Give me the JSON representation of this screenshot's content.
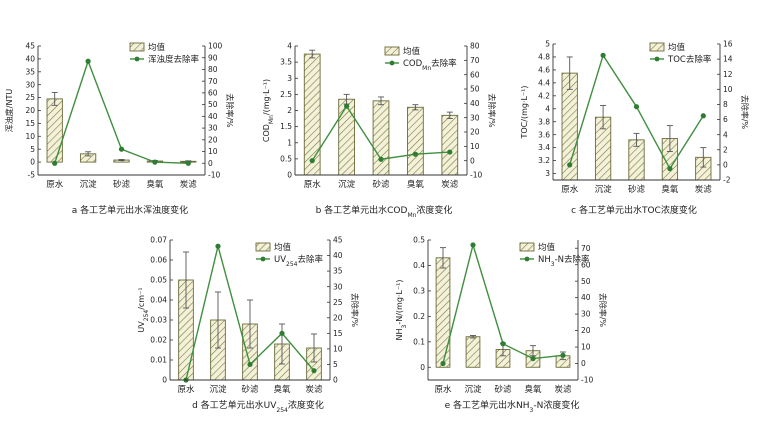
{
  "chart_data": [
    {
      "type": "bar+line",
      "panel": "a",
      "caption": "a 各工艺单元出水浑浊度变化",
      "categories": [
        "原水",
        "沉淀",
        "砂滤",
        "臭氧",
        "炭滤"
      ],
      "bar_series": {
        "name": "均值",
        "values": [
          24.5,
          3.2,
          0.8,
          0.4,
          0.3
        ],
        "errors": [
          2.5,
          0.8,
          0.2,
          0.2,
          0.2
        ]
      },
      "line_series": {
        "name": "浑浊度去除率",
        "values": [
          0,
          87,
          12,
          1,
          0
        ]
      },
      "ylabel_left": "浑浊度/NTU",
      "ylabel_right": "去除率/%",
      "ylim_left": [
        -5,
        45
      ],
      "yticks_left": [
        -5,
        0,
        5,
        10,
        15,
        20,
        25,
        30,
        35,
        40,
        45
      ],
      "ylim_right": [
        -10,
        100
      ],
      "yticks_right": [
        -10,
        0,
        10,
        20,
        30,
        40,
        50,
        60,
        70,
        80,
        90,
        100
      ],
      "legend_placement": "top-right",
      "grid": false
    },
    {
      "type": "bar+line",
      "panel": "b",
      "caption": "b 各工艺单元出水COD浓度变化",
      "caption_sub": "Mn",
      "categories": [
        "原水",
        "沉淀",
        "砂滤",
        "臭氧",
        "炭滤"
      ],
      "bar_series": {
        "name": "均值",
        "values": [
          3.75,
          2.35,
          2.3,
          2.1,
          1.85
        ],
        "errors": [
          0.12,
          0.15,
          0.12,
          0.08,
          0.1
        ]
      },
      "line_series": {
        "name": "COD去除率",
        "name_sub": "Mn",
        "values": [
          0,
          38,
          1,
          4.5,
          6
        ]
      },
      "ylabel_left": "COD/(mg·L⁻¹)",
      "ylabel_left_sub": "Mn",
      "ylabel_right": "去除率/%",
      "ylim_left": [
        0,
        4.0
      ],
      "yticks_left": [
        0,
        0.5,
        1.0,
        1.5,
        2.0,
        2.5,
        3.0,
        3.5,
        4.0
      ],
      "ylim_right": [
        -10,
        80
      ],
      "yticks_right": [
        -10,
        0,
        10,
        20,
        30,
        40,
        50,
        60,
        70,
        80
      ],
      "legend_placement": "top-right",
      "grid": false
    },
    {
      "type": "bar+line",
      "panel": "c",
      "caption": "c 各工艺单元出水TOC浓度变化",
      "categories": [
        "原水",
        "沉淀",
        "砂滤",
        "臭氧",
        "炭滤"
      ],
      "bar_series": {
        "name": "均值",
        "values": [
          4.55,
          3.87,
          3.52,
          3.54,
          3.25
        ],
        "errors": [
          0.25,
          0.18,
          0.1,
          0.2,
          0.15
        ]
      },
      "line_series": {
        "name": "TOC去除率",
        "values": [
          0,
          14.5,
          7.7,
          -0.5,
          6.5
        ]
      },
      "ylabel_left": "TOC/(mg·L⁻¹)",
      "ylabel_right": "去除率/%",
      "ylim_left": [
        2.9,
        5.0
      ],
      "yticks_left": [
        3.0,
        3.2,
        3.4,
        3.6,
        3.8,
        4.0,
        4.2,
        4.4,
        4.6,
        4.8,
        5.0
      ],
      "ylim_right": [
        -2,
        16
      ],
      "yticks_right": [
        -2,
        0,
        2,
        4,
        6,
        8,
        10,
        12,
        14,
        16
      ],
      "legend_placement": "top-right",
      "grid": false
    },
    {
      "type": "bar+line",
      "panel": "d",
      "caption": "d 各工艺单元出水UV浓度变化",
      "caption_sub": "254",
      "categories": [
        "原水",
        "沉淀",
        "砂滤",
        "臭氧",
        "炭滤"
      ],
      "bar_series": {
        "name": "均值",
        "values": [
          0.05,
          0.03,
          0.028,
          0.018,
          0.016
        ],
        "errors": [
          0.014,
          0.014,
          0.012,
          0.01,
          0.007
        ]
      },
      "line_series": {
        "name": "UV去除率",
        "name_sub": "254",
        "values": [
          0,
          43,
          5,
          15,
          3
        ]
      },
      "ylabel_left": "UV/cm⁻¹",
      "ylabel_left_sub": "254",
      "ylabel_right": "去除率/%",
      "ylim_left": [
        0,
        0.07
      ],
      "yticks_left": [
        0,
        0.01,
        0.02,
        0.03,
        0.04,
        0.05,
        0.06,
        0.07
      ],
      "ylim_right": [
        0,
        45
      ],
      "yticks_right": [
        0,
        5,
        10,
        15,
        20,
        25,
        30,
        35,
        40,
        45
      ],
      "legend_placement": "top-right",
      "grid": false
    },
    {
      "type": "bar+line",
      "panel": "e",
      "caption": "e 各工艺单元出水NH-N浓度变化",
      "caption_sub": "3",
      "categories": [
        "原水",
        "沉淀",
        "砂滤",
        "臭氧",
        "炭滤"
      ],
      "bar_series": {
        "name": "均值",
        "values": [
          0.43,
          0.12,
          0.07,
          0.065,
          0.045
        ],
        "errors": [
          0.04,
          0.005,
          0.025,
          0.02,
          0.015
        ]
      },
      "line_series": {
        "name": "NH-N去除率",
        "name_sub": "3",
        "values": [
          0,
          72,
          12,
          3,
          5
        ]
      },
      "ylabel_left": "NH-N/(mg·L⁻¹)",
      "ylabel_left_sub": "3",
      "ylabel_right": "去除率/%",
      "ylim_left": [
        -0.05,
        0.5
      ],
      "yticks_left": [
        0,
        0.1,
        0.2,
        0.3,
        0.4,
        0.5
      ],
      "ylim_right": [
        -10,
        75
      ],
      "yticks_right": [
        -10,
        0,
        10,
        20,
        30,
        40,
        50,
        60,
        70
      ],
      "legend_placement": "top-right",
      "grid": false
    }
  ],
  "colors": {
    "bar_fill": "#f4f1da",
    "hatch": "#7a7a3c",
    "line": "#3f8f3f",
    "marker": "#2e7d32",
    "error_bar": "#555555"
  }
}
